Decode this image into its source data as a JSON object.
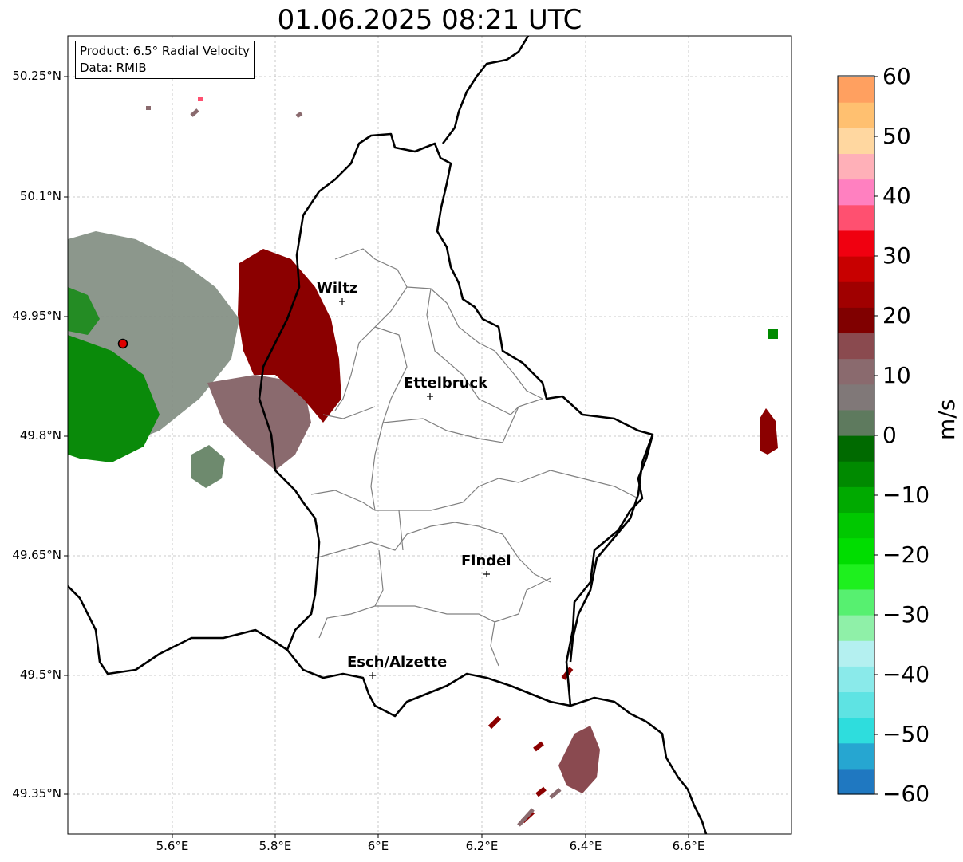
{
  "title": "01.06.2025 08:21 UTC",
  "info_box": {
    "product": "Product: 6.5° Radial Velocity",
    "source": "Data: RMIB"
  },
  "cities": [
    {
      "name": "Wiltz"
    },
    {
      "name": "Ettelbruck"
    },
    {
      "name": "Findel"
    },
    {
      "name": "Esch/Alzette"
    }
  ],
  "latitude_labels": [
    "50.25°N",
    "50.1°N",
    "49.95°N",
    "49.8°N",
    "49.65°N",
    "49.5°N",
    "49.35°N"
  ],
  "longitude_labels": [
    "5.6°E",
    "5.8°E",
    "6°E",
    "6.2°E",
    "6.4°E",
    "6.6°E"
  ],
  "colorbar": {
    "label": "m/s",
    "ticks": [
      "60",
      "50",
      "40",
      "30",
      "20",
      "10",
      "0",
      "−10",
      "−20",
      "−30",
      "−40",
      "−50",
      "−60"
    ],
    "min": -60,
    "max": 60,
    "colors_low_to_high": [
      "#1f78c1",
      "#26a6d1",
      "#2edddd",
      "#5ee3e3",
      "#8aeaea",
      "#b4f0f0",
      "#8ff0a8",
      "#57f070",
      "#1ef01e",
      "#00dd00",
      "#00c800",
      "#00aa00",
      "#008a00",
      "#006a00",
      "#5e7a5e",
      "#807878",
      "#8a6a6e",
      "#8a4a4f",
      "#800000",
      "#a00000",
      "#c80000",
      "#f00010",
      "#ff5070",
      "#ff80c0",
      "#ffb0b8",
      "#ffd7a0",
      "#ffc070",
      "#ffa060"
    ]
  },
  "radar_site": {
    "color": "#e00000"
  },
  "velocity_colors": {
    "outbound": "#8b0000",
    "near_zero": "#808080",
    "inbound": "#008a00",
    "mixed": "#8a6a6e"
  },
  "grid": true
}
